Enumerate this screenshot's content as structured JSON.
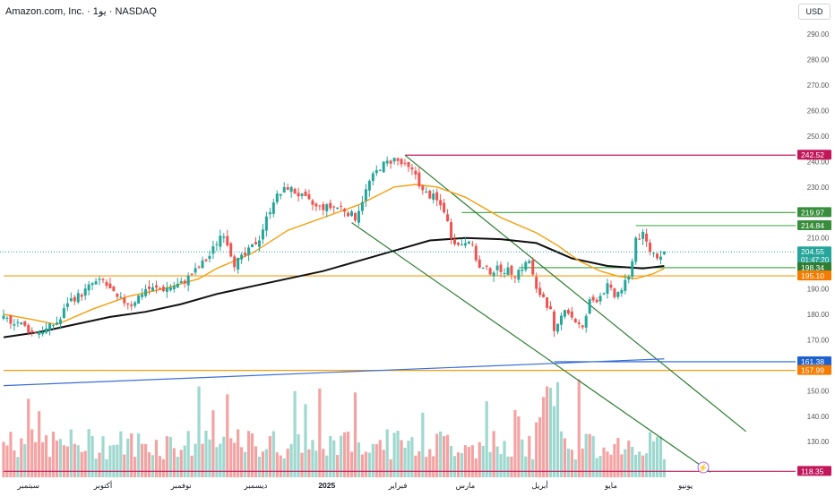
{
  "header": {
    "title": "Amazon.com, Inc. · 1يو · NASDAQ",
    "currency": "USD"
  },
  "chart_data": {
    "type": "candlestick",
    "ylim": [
      116,
      295
    ],
    "y_ticks": [
      130,
      140,
      150,
      160,
      170,
      180,
      190,
      200,
      210,
      220,
      230,
      240,
      250,
      260,
      270,
      280,
      290
    ],
    "x_labels": [
      {
        "label": "سبتمبر",
        "bar": 7
      },
      {
        "label": "أكتوبر",
        "bar": 28
      },
      {
        "label": "نوفمبر",
        "bar": 50
      },
      {
        "label": "ديسمبر",
        "bar": 71
      },
      {
        "label": "2025",
        "bar": 91
      },
      {
        "label": "فبراير",
        "bar": 111
      },
      {
        "label": "مارس",
        "bar": 130
      },
      {
        "label": "أبريل",
        "bar": 151
      },
      {
        "label": "مايو",
        "bar": 171
      },
      {
        "label": "يونيو",
        "bar": 192
      }
    ],
    "total_bars": 199,
    "price_labels": [
      {
        "value": "242.52",
        "color": "#c2185b"
      },
      {
        "value": "219.97",
        "color": "#388e3c"
      },
      {
        "value": "214.84",
        "color": "#388e3c"
      },
      {
        "value": "204.55",
        "sub": "01:47:20",
        "color": "#26a69a"
      },
      {
        "value": "198.34",
        "color": "#2e7d32"
      },
      {
        "value": "195.10",
        "color": "#f57c00"
      },
      {
        "value": "161.38",
        "color": "#1e62d0"
      },
      {
        "value": "157.99",
        "color": "#f57c00"
      },
      {
        "value": "118.35",
        "color": "#c2185b"
      }
    ],
    "horizontal_levels": [
      {
        "y": 242.52,
        "from_bar": 113,
        "color": "#c2185b"
      },
      {
        "y": 219.97,
        "from_bar": 129,
        "color": "#4caf50"
      },
      {
        "y": 214.84,
        "from_bar": 178,
        "color": "#4caf50"
      },
      {
        "y": 198.34,
        "from_bar": 145,
        "color": "#4caf50"
      },
      {
        "y": 195.1,
        "from_bar": 0,
        "color": "#f59e0b"
      },
      {
        "y": 161.38,
        "from_bar": 155,
        "color": "#1e62d0"
      },
      {
        "y": 157.99,
        "from_bar": 0,
        "color": "#f59e0b"
      },
      {
        "y": 118.35,
        "from_bar": 0,
        "color": "#c2185b"
      }
    ],
    "trendlines": [
      {
        "from": [
          113,
          242.5
        ],
        "to": [
          209,
          134.0
        ],
        "color": "#2e7d32"
      },
      {
        "from": [
          98,
          216.0
        ],
        "to": [
          199,
          118.0
        ],
        "color": "#2e7d32"
      },
      {
        "from": [
          0,
          152.0
        ],
        "to": [
          186,
          162.5
        ],
        "color": "#3b6fd6"
      }
    ],
    "moving_averages": [
      {
        "name": "MA long",
        "color": "#111111",
        "points": [
          [
            0,
            171
          ],
          [
            10,
            173
          ],
          [
            20,
            176
          ],
          [
            30,
            179
          ],
          [
            40,
            181
          ],
          [
            50,
            184
          ],
          [
            60,
            188
          ],
          [
            70,
            191
          ],
          [
            80,
            194
          ],
          [
            90,
            197
          ],
          [
            100,
            201
          ],
          [
            110,
            205
          ],
          [
            120,
            209
          ],
          [
            130,
            210
          ],
          [
            140,
            209.5
          ],
          [
            150,
            208
          ],
          [
            160,
            202
          ],
          [
            170,
            199
          ],
          [
            180,
            198
          ],
          [
            186,
            199
          ]
        ]
      },
      {
        "name": "MA short",
        "color": "#f59e0b",
        "points": [
          [
            0,
            180
          ],
          [
            8,
            178
          ],
          [
            15,
            176
          ],
          [
            25,
            182
          ],
          [
            35,
            187
          ],
          [
            45,
            190
          ],
          [
            50,
            192
          ],
          [
            55,
            194
          ],
          [
            60,
            198
          ],
          [
            70,
            204
          ],
          [
            80,
            213
          ],
          [
            90,
            218
          ],
          [
            100,
            223
          ],
          [
            110,
            230
          ],
          [
            116,
            231
          ],
          [
            122,
            230
          ],
          [
            130,
            226
          ],
          [
            140,
            218
          ],
          [
            150,
            212
          ],
          [
            156,
            207
          ],
          [
            162,
            201
          ],
          [
            168,
            197
          ],
          [
            173,
            195
          ],
          [
            178,
            194
          ],
          [
            183,
            196
          ],
          [
            186,
            198
          ]
        ]
      }
    ],
    "price_path": [
      [
        0,
        178
      ],
      [
        4,
        177
      ],
      [
        8,
        173
      ],
      [
        12,
        174
      ],
      [
        16,
        178
      ],
      [
        18,
        185
      ],
      [
        22,
        188
      ],
      [
        25,
        192
      ],
      [
        28,
        193
      ],
      [
        32,
        186
      ],
      [
        36,
        184
      ],
      [
        40,
        190
      ],
      [
        45,
        190
      ],
      [
        50,
        192
      ],
      [
        54,
        197
      ],
      [
        58,
        203
      ],
      [
        61,
        211
      ],
      [
        62,
        212
      ],
      [
        65,
        200
      ],
      [
        68,
        203
      ],
      [
        72,
        210
      ],
      [
        76,
        225
      ],
      [
        80,
        230
      ],
      [
        84,
        226
      ],
      [
        88,
        222
      ],
      [
        91,
        222
      ],
      [
        95,
        222
      ],
      [
        99,
        218
      ],
      [
        103,
        232
      ],
      [
        106,
        238
      ],
      [
        110,
        241
      ],
      [
        113,
        238
      ],
      [
        116,
        235
      ],
      [
        118,
        228
      ],
      [
        121,
        226
      ],
      [
        124,
        221
      ],
      [
        126,
        211
      ],
      [
        128,
        207
      ],
      [
        131,
        210
      ],
      [
        134,
        198
      ],
      [
        137,
        197
      ],
      [
        140,
        198
      ],
      [
        144,
        196
      ],
      [
        148,
        201
      ],
      [
        150,
        189
      ],
      [
        152,
        187
      ],
      [
        154,
        181
      ],
      [
        155,
        172
      ],
      [
        156,
        175
      ],
      [
        158,
        183
      ],
      [
        160,
        179
      ],
      [
        163,
        174
      ],
      [
        165,
        185
      ],
      [
        167,
        186
      ],
      [
        170,
        191
      ],
      [
        172,
        187
      ],
      [
        174,
        190
      ],
      [
        176,
        194
      ],
      [
        178,
        210
      ],
      [
        180,
        211
      ],
      [
        182,
        205
      ],
      [
        184,
        203
      ],
      [
        186,
        204.55
      ]
    ],
    "volume_bars": 199
  }
}
